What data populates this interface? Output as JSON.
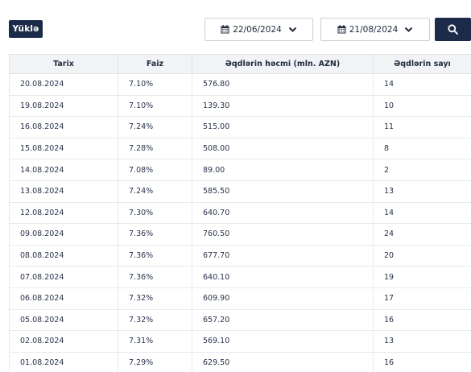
{
  "toolbar": {
    "load_label": "Yüklə",
    "date_from": "22/06/2024",
    "date_to": "21/08/2024",
    "accent_color": "#1c2b4a"
  },
  "table": {
    "headers": [
      "Tarix",
      "Faiz",
      "Əqdlərin həcmi (mln. AZN)",
      "Əqdlərin sayı"
    ],
    "rows": [
      [
        "20.08.2024",
        "7.10%",
        "576.80",
        "14"
      ],
      [
        "19.08.2024",
        "7.10%",
        "139.30",
        "10"
      ],
      [
        "16.08.2024",
        "7.24%",
        "515.00",
        "11"
      ],
      [
        "15.08.2024",
        "7.28%",
        "508.00",
        "8"
      ],
      [
        "14.08.2024",
        "7.08%",
        "89.00",
        "2"
      ],
      [
        "13.08.2024",
        "7.24%",
        "585.50",
        "13"
      ],
      [
        "12.08.2024",
        "7.30%",
        "640.70",
        "14"
      ],
      [
        "09.08.2024",
        "7.36%",
        "760.50",
        "24"
      ],
      [
        "08.08.2024",
        "7.36%",
        "677.70",
        "20"
      ],
      [
        "07.08.2024",
        "7.36%",
        "640.10",
        "19"
      ],
      [
        "06.08.2024",
        "7.32%",
        "609.90",
        "17"
      ],
      [
        "05.08.2024",
        "7.32%",
        "657.20",
        "16"
      ],
      [
        "02.08.2024",
        "7.31%",
        "569.10",
        "13"
      ],
      [
        "01.08.2024",
        "7.29%",
        "629.50",
        "16"
      ]
    ]
  },
  "icons": {
    "calendar": "calendar-icon",
    "chevron": "chevron-down-icon",
    "search": "search-icon"
  }
}
